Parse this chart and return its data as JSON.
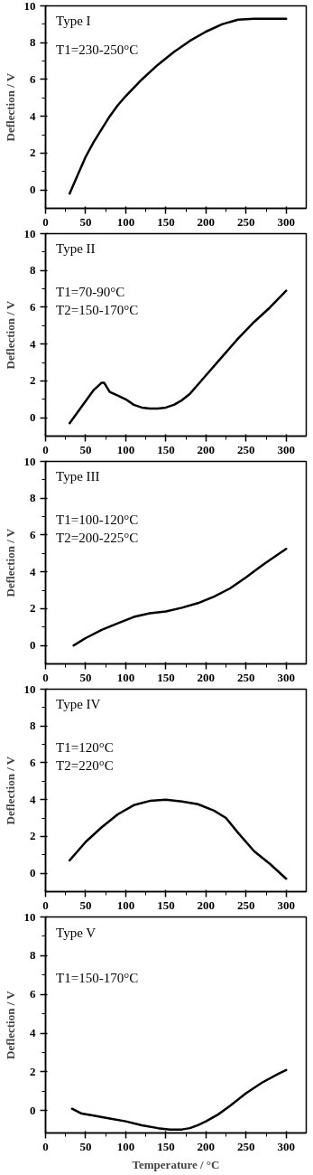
{
  "chart_data": [
    {
      "type": "line",
      "ylabel": "Deflection / V",
      "annotations": [
        "Type I",
        "T1=230-250°C"
      ],
      "xlim": [
        0,
        325
      ],
      "ylim": [
        -1,
        10
      ],
      "xticks": [
        0,
        50,
        100,
        150,
        200,
        250,
        300
      ],
      "yticks": [
        0,
        2,
        4,
        6,
        8,
        10
      ],
      "grid": false,
      "series": [
        {
          "color": "#000000",
          "x": [
            30,
            40,
            50,
            60,
            70,
            80,
            90,
            100,
            120,
            140,
            160,
            180,
            200,
            220,
            240,
            260,
            280,
            300
          ],
          "values": [
            -0.2,
            0.8,
            1.8,
            2.6,
            3.3,
            4.0,
            4.6,
            5.1,
            6.0,
            6.8,
            7.5,
            8.1,
            8.6,
            9.0,
            9.25,
            9.3,
            9.3,
            9.3
          ]
        }
      ]
    },
    {
      "type": "line",
      "ylabel": "Deflection / V",
      "annotations": [
        "Type II",
        "T1=70-90°C",
        "T2=150-170°C"
      ],
      "xlim": [
        0,
        325
      ],
      "ylim": [
        -1,
        10
      ],
      "xticks": [
        0,
        50,
        100,
        150,
        200,
        250,
        300
      ],
      "yticks": [
        0,
        2,
        4,
        6,
        8,
        10
      ],
      "grid": false,
      "series": [
        {
          "color": "#000000",
          "x": [
            30,
            40,
            50,
            60,
            70,
            73,
            80,
            90,
            100,
            110,
            120,
            130,
            140,
            150,
            160,
            170,
            180,
            190,
            200,
            220,
            240,
            260,
            280,
            300
          ],
          "values": [
            -0.3,
            0.3,
            0.9,
            1.5,
            1.9,
            1.9,
            1.4,
            1.2,
            1.0,
            0.7,
            0.55,
            0.5,
            0.5,
            0.55,
            0.7,
            0.95,
            1.3,
            1.8,
            2.3,
            3.3,
            4.3,
            5.2,
            6.0,
            6.9
          ]
        }
      ]
    },
    {
      "type": "line",
      "ylabel": "Deflection / V",
      "annotations": [
        "Type III",
        "T1=100-120°C",
        "T2=200-225°C"
      ],
      "xlim": [
        0,
        325
      ],
      "ylim": [
        -1,
        10
      ],
      "xticks": [
        0,
        50,
        100,
        150,
        200,
        250,
        300
      ],
      "yticks": [
        0,
        2,
        4,
        6,
        8,
        10
      ],
      "grid": false,
      "series": [
        {
          "color": "#000000",
          "x": [
            35,
            50,
            70,
            90,
            110,
            130,
            150,
            170,
            190,
            210,
            230,
            250,
            270,
            290,
            300
          ],
          "values": [
            0,
            0.4,
            0.85,
            1.2,
            1.55,
            1.75,
            1.85,
            2.05,
            2.3,
            2.65,
            3.1,
            3.7,
            4.35,
            4.95,
            5.25
          ]
        }
      ]
    },
    {
      "type": "line",
      "ylabel": "Deflection / V",
      "annotations": [
        "Type IV",
        "T1=120°C",
        "T2=220°C"
      ],
      "xlim": [
        0,
        325
      ],
      "ylim": [
        -1,
        10
      ],
      "xticks": [
        0,
        50,
        100,
        150,
        200,
        250,
        300
      ],
      "yticks": [
        0,
        2,
        4,
        6,
        8,
        10
      ],
      "grid": false,
      "series": [
        {
          "color": "#000000",
          "x": [
            30,
            40,
            50,
            70,
            90,
            110,
            130,
            150,
            170,
            190,
            210,
            225,
            240,
            260,
            280,
            300
          ],
          "values": [
            0.7,
            1.2,
            1.7,
            2.5,
            3.2,
            3.7,
            3.93,
            4.0,
            3.9,
            3.75,
            3.4,
            3.0,
            2.2,
            1.2,
            0.5,
            -0.3
          ]
        }
      ]
    },
    {
      "type": "line",
      "xlabel": "Temperature / °C",
      "ylabel": "Deflection / V",
      "annotations": [
        "Type V",
        "T1=150-170°C"
      ],
      "xlim": [
        0,
        325
      ],
      "ylim": [
        -1.15,
        10
      ],
      "xticks": [
        0,
        50,
        100,
        150,
        200,
        250,
        300
      ],
      "yticks": [
        0,
        2,
        4,
        6,
        8,
        10
      ],
      "grid": false,
      "series": [
        {
          "color": "#000000",
          "x": [
            33,
            45,
            60,
            80,
            100,
            120,
            140,
            155,
            170,
            180,
            190,
            200,
            215,
            230,
            250,
            270,
            290,
            300
          ],
          "values": [
            0.1,
            -0.15,
            -0.25,
            -0.4,
            -0.55,
            -0.75,
            -0.9,
            -0.97,
            -0.97,
            -0.9,
            -0.75,
            -0.55,
            -0.2,
            0.25,
            0.9,
            1.45,
            1.9,
            2.1
          ]
        }
      ]
    }
  ]
}
